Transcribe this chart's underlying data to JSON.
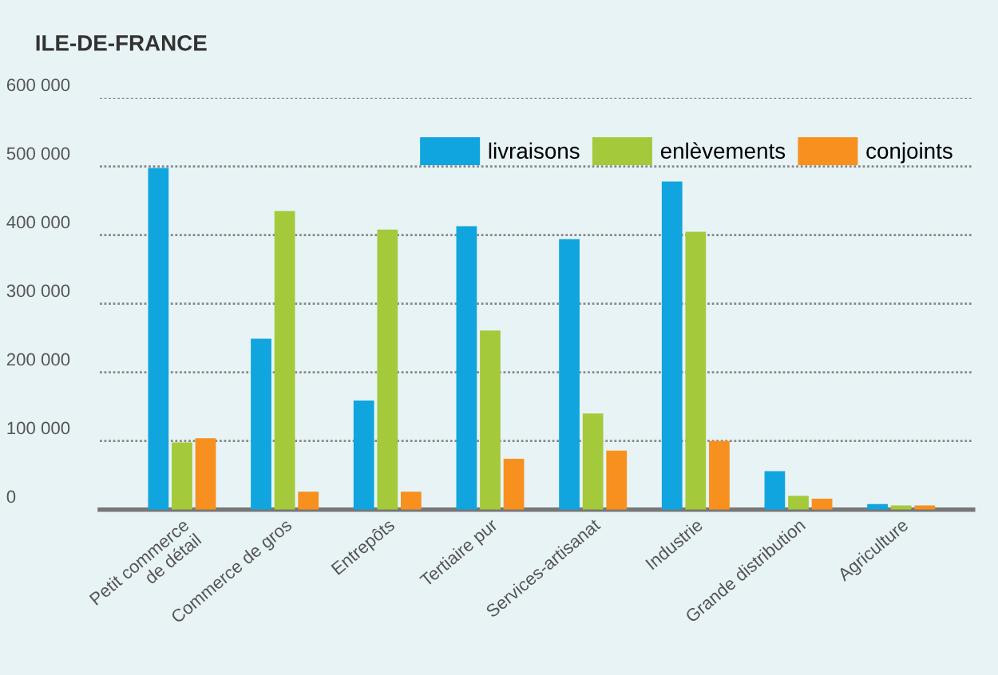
{
  "chart_data": {
    "type": "bar",
    "title": "ILE-DE-FRANCE",
    "categories": [
      "Petit commerce\nde détail",
      "Commerce de gros",
      "Entrepôts",
      "Tertiaire pur",
      "Services-artisanat",
      "Industrie",
      "Grande distribution",
      "Agriculture"
    ],
    "series": [
      {
        "name": "livraisons",
        "color": "#10a5de",
        "values": [
          498000,
          249000,
          159000,
          413000,
          394000,
          478000,
          56000,
          8000
        ]
      },
      {
        "name": "enlèvements",
        "color": "#a4c93a",
        "values": [
          98000,
          435000,
          408000,
          261000,
          140000,
          405000,
          20000,
          6000
        ]
      },
      {
        "name": "conjoints",
        "color": "#f7901e",
        "values": [
          104000,
          26000,
          26000,
          74000,
          86000,
          100000,
          16000,
          6000
        ]
      }
    ],
    "ylim": [
      0,
      600000
    ],
    "yticks": [
      {
        "value": 0,
        "label": "0"
      },
      {
        "value": 100000,
        "label": "100 000"
      },
      {
        "value": 200000,
        "label": "200 000"
      },
      {
        "value": 300000,
        "label": "300 000"
      },
      {
        "value": 400000,
        "label": "400 000"
      },
      {
        "value": 500000,
        "label": "500 000"
      },
      {
        "value": 600000,
        "label": "600 000"
      }
    ],
    "grid": "y",
    "legend": "top right"
  }
}
